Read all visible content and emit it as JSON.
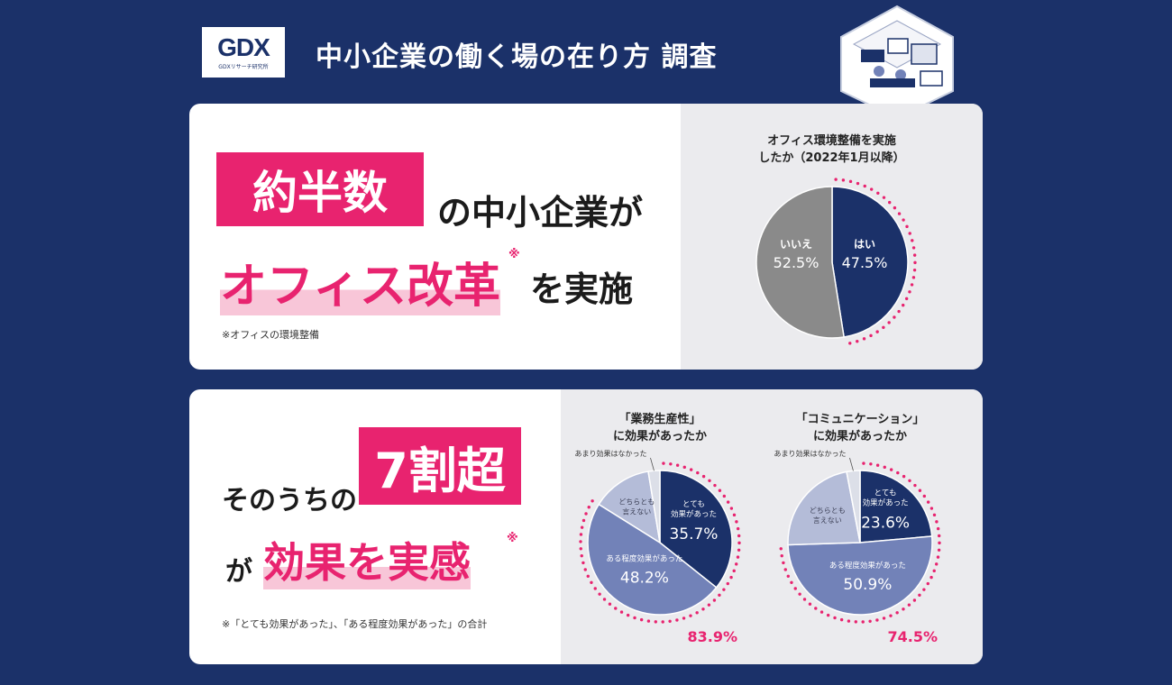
{
  "header": {
    "logo_mark": "GDX",
    "logo_sub": "GDXリサーチ研究所",
    "title": "中小企業の働く場の在り方 調査"
  },
  "section1": {
    "badge": "約半数",
    "line1_rest": "の中小企業が",
    "line2_pink": "オフィス改革",
    "asterisk": "※",
    "line2_rest": "を実施",
    "note": "※オフィスの環境整備"
  },
  "section2": {
    "line1_lead": "そのうちの",
    "badge": "7割超",
    "line2_lead": "が",
    "line2_pink": "効果を実感",
    "asterisk": "※",
    "note": "※「とても効果があった」、「ある程度効果があった」の合計"
  },
  "colors": {
    "navy": "#1b3169",
    "pink": "#e8236f",
    "mid_blue": "#7282b8",
    "light_blue": "#b4bcd8",
    "gray": "#8a8a8a"
  },
  "chart_data": [
    {
      "type": "pie",
      "title": "オフィス環境整備を実施\nしたか（2022年1月以降）",
      "title_lines": [
        "オフィス環境整備を実施",
        "したか（2022年1月以降）"
      ],
      "slices": [
        {
          "label": "はい",
          "value": 47.5,
          "value_label": "47.5%"
        },
        {
          "label": "いいえ",
          "value": 52.5,
          "value_label": "52.5%"
        }
      ]
    },
    {
      "type": "pie",
      "title": "「業務生産性」\nに効果があったか",
      "title_lines": [
        "「業務生産性」",
        "に効果があったか"
      ],
      "slices": [
        {
          "label": "とても効果があった",
          "label_lines": [
            "とても",
            "効果があった"
          ],
          "value": 35.7,
          "value_label": "35.7%"
        },
        {
          "label": "ある程度効果があった",
          "value": 48.2,
          "value_label": "48.2%"
        },
        {
          "label": "どちらとも言えない",
          "label_lines": [
            "どちらとも",
            "言えない"
          ],
          "value": 13.5
        },
        {
          "label": "あまり効果はなかった",
          "value": 2.6
        }
      ],
      "total_label": "83.9%"
    },
    {
      "type": "pie",
      "title": "「コミュニケーション」\nに効果があったか",
      "title_lines": [
        "「コミュニケーション」",
        "に効果があったか"
      ],
      "slices": [
        {
          "label": "とても効果があった",
          "label_lines": [
            "とても",
            "効果があった"
          ],
          "value": 23.6,
          "value_label": "23.6%"
        },
        {
          "label": "ある程度効果があった",
          "value": 50.9,
          "value_label": "50.9%"
        },
        {
          "label": "どちらとも言えない",
          "label_lines": [
            "どちらとも",
            "言えない"
          ],
          "value": 22.5
        },
        {
          "label": "あまり効果はなかった",
          "value": 3.0
        }
      ],
      "total_label": "74.5%"
    }
  ]
}
